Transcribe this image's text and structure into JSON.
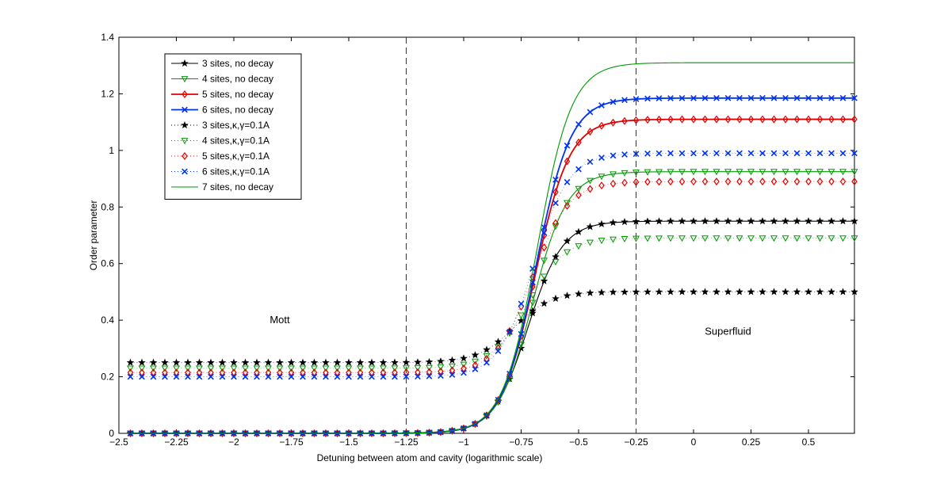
{
  "chart_data": {
    "type": "line",
    "title": "",
    "xlabel": "Detuning between atom and cavity (logarithmic scale)",
    "ylabel": "Order parameter",
    "xlim": [
      -2.5,
      0.7
    ],
    "ylim": [
      0,
      1.4
    ],
    "xticks": [
      -2.5,
      -2.25,
      -2,
      -1.75,
      -1.5,
      -1.25,
      -1,
      -0.75,
      -0.5,
      -0.25,
      0,
      0.25,
      0.5
    ],
    "xtick_labels": [
      "−2.5",
      "−2.25",
      "−2",
      "−1.75",
      "−1.5",
      "−1.25",
      "−1",
      "−0.75",
      "−0.5",
      "−0.25",
      "0",
      "0.25",
      "0.5"
    ],
    "yticks": [
      0,
      0.2,
      0.4,
      0.6,
      0.8,
      1,
      1.2,
      1.4
    ],
    "ytick_labels": [
      "0",
      "0.2",
      "0.4",
      "0.6",
      "0.8",
      "1",
      "1.2",
      "1.4"
    ],
    "grid": false,
    "legend_position": "top-left",
    "vlines": [
      -1.25,
      -0.25
    ],
    "annotations": [
      {
        "text": "Mott",
        "x": -1.8,
        "y": 0.4
      },
      {
        "text": "Superfluid",
        "x": 0.15,
        "y": 0.36
      }
    ],
    "x_start": -2.45,
    "x_step": 0.05,
    "x_end": 0.7,
    "series": [
      {
        "name": "3 sites, no decay",
        "color": "#000000",
        "line": "solid",
        "marker": "star",
        "low": 0,
        "high": 0.75,
        "center": -0.72,
        "width": 0.075
      },
      {
        "name": "4 sites, no decay",
        "color": "#009900",
        "line": "solid",
        "marker": "triangle-down",
        "low": 0,
        "high": 0.925,
        "center": -0.7,
        "width": 0.075
      },
      {
        "name": "5 sites, no decay",
        "color": "#e00000",
        "line": "solid",
        "marker": "diamond",
        "low": 0,
        "high": 1.11,
        "center": -0.69,
        "width": 0.075
      },
      {
        "name": "6 sites, no decay",
        "color": "#0033ee",
        "line": "solid",
        "marker": "x",
        "low": 0,
        "high": 1.185,
        "center": -0.685,
        "width": 0.075
      },
      {
        "name": "3 sites,κ,γ=0.1A",
        "color": "#000000",
        "line": "dotted",
        "marker": "star",
        "low": 0.25,
        "high": 0.5,
        "center": -0.78,
        "width": 0.08
      },
      {
        "name": "4 sites,κ,γ=0.1A",
        "color": "#009900",
        "line": "dotted",
        "marker": "triangle-down",
        "low": 0.23,
        "high": 0.69,
        "center": -0.72,
        "width": 0.08
      },
      {
        "name": "5 sites,κ,γ=0.1A",
        "color": "#e00000",
        "line": "dotted",
        "marker": "diamond",
        "low": 0.215,
        "high": 0.89,
        "center": -0.7,
        "width": 0.078
      },
      {
        "name": "6 sites,κ,γ=0.1A",
        "color": "#0033ee",
        "line": "dotted",
        "marker": "x",
        "low": 0.2,
        "high": 0.99,
        "center": -0.695,
        "width": 0.076
      },
      {
        "name": "7 sites, no decay",
        "color": "#009900",
        "line": "solid",
        "marker": "none",
        "low": 0,
        "high": 1.31,
        "center": -0.68,
        "width": 0.075
      }
    ]
  }
}
